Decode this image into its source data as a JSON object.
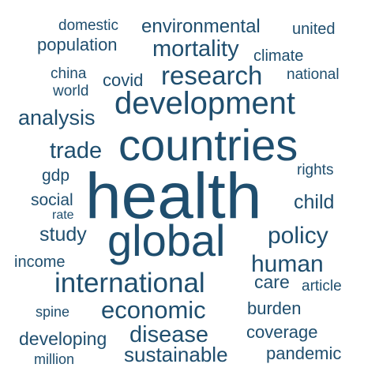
{
  "chart_data": {
    "type": "wordcloud",
    "color": "#1f4e6e",
    "words": [
      {
        "text": "health",
        "weight": 100
      },
      {
        "text": "countries",
        "weight": 62
      },
      {
        "text": "global",
        "weight": 62
      },
      {
        "text": "development",
        "weight": 48
      },
      {
        "text": "international",
        "weight": 41
      },
      {
        "text": "research",
        "weight": 34
      },
      {
        "text": "economic",
        "weight": 33
      },
      {
        "text": "human",
        "weight": 31
      },
      {
        "text": "policy",
        "weight": 31
      },
      {
        "text": "trade",
        "weight": 31
      },
      {
        "text": "mortality",
        "weight": 30
      },
      {
        "text": "disease",
        "weight": 30
      },
      {
        "text": "analysis",
        "weight": 28
      },
      {
        "text": "sustainable",
        "weight": 28
      },
      {
        "text": "study",
        "weight": 27
      },
      {
        "text": "child",
        "weight": 26
      },
      {
        "text": "care",
        "weight": 26
      },
      {
        "text": "environmental",
        "weight": 26
      },
      {
        "text": "covid",
        "weight": 25
      },
      {
        "text": "developing",
        "weight": 25
      },
      {
        "text": "burden",
        "weight": 24
      },
      {
        "text": "coverage",
        "weight": 24
      },
      {
        "text": "pandemic",
        "weight": 24
      },
      {
        "text": "population",
        "weight": 24
      },
      {
        "text": "gdp",
        "weight": 23
      },
      {
        "text": "social",
        "weight": 23
      },
      {
        "text": "income",
        "weight": 22
      },
      {
        "text": "climate",
        "weight": 21
      },
      {
        "text": "united",
        "weight": 21
      },
      {
        "text": "domestic",
        "weight": 21
      },
      {
        "text": "world",
        "weight": 20
      },
      {
        "text": "china",
        "weight": 20
      },
      {
        "text": "national",
        "weight": 20
      },
      {
        "text": "rights",
        "weight": 20
      },
      {
        "text": "article",
        "weight": 20
      },
      {
        "text": "spine",
        "weight": 19
      },
      {
        "text": "million",
        "weight": 19
      },
      {
        "text": "rate",
        "weight": 17
      }
    ]
  }
}
